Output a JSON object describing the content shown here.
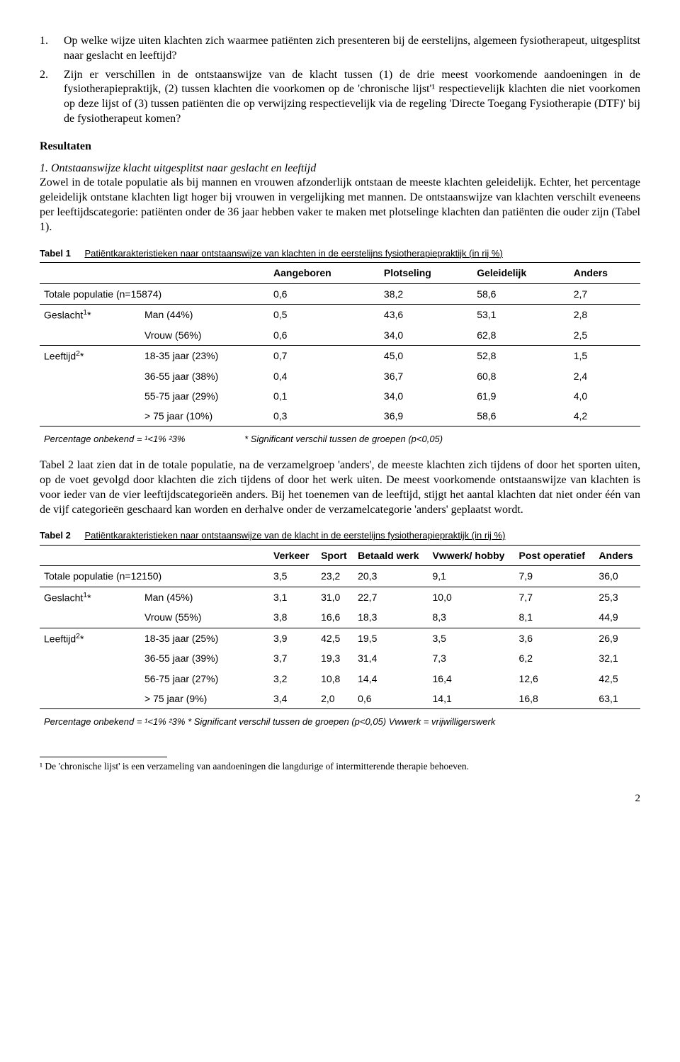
{
  "q1": {
    "num": "1.",
    "text": "Op welke wijze uiten klachten zich waarmee patiënten zich presenteren bij de eerstelijns, algemeen fysiotherapeut, uitgesplitst naar geslacht en leeftijd?"
  },
  "q2": {
    "num": "2.",
    "text": "Zijn er verschillen in de ontstaanswijze van de klacht tussen (1) de drie meest voorkomende aandoeningen in de fysiotherapiepraktijk, (2) tussen klachten die voorkomen op de 'chronische lijst'¹ respectievelijk klachten die niet voorkomen op deze lijst of (3) tussen patiënten die op verwijzing respectievelijk via de regeling 'Directe Toegang Fysiotherapie (DTF)' bij de fysiotherapeut komen?"
  },
  "results_heading": "Resultaten",
  "sec1_head": "1. Ontstaanswijze klacht uitgesplitst naar geslacht en leeftijd",
  "sec1_body": "Zowel in de totale populatie als bij mannen en vrouwen afzonderlijk ontstaan de meeste klachten geleidelijk. Echter, het percentage geleidelijk ontstane klachten ligt hoger bij vrouwen in vergelijking met mannen. De ontstaanswijze van klachten verschilt eveneens per leeftijdscategorie: patiënten onder de 36 jaar hebben vaker te maken met plotselinge klachten dan patiënten die ouder zijn (Tabel 1).",
  "table1": {
    "caption_label": "Tabel 1",
    "caption_text": "Patiëntkarakteristieken naar ontstaanswijze van klachten in de eerstelijns fysiotherapiepraktijk (in rij %)",
    "headers": [
      "",
      "",
      "Aangeboren",
      "Plotseling",
      "Geleidelijk",
      "Anders"
    ],
    "rows": [
      {
        "label": "Totale populatie (n=15874)",
        "sub": "",
        "v": [
          "0,6",
          "38,2",
          "58,6",
          "2,7"
        ],
        "section_end": true
      },
      {
        "label": "Geslacht¹*",
        "sub": "Man (44%)",
        "v": [
          "0,5",
          "43,6",
          "53,1",
          "2,8"
        ],
        "section_end": false
      },
      {
        "label": "",
        "sub": "Vrouw (56%)",
        "v": [
          "0,6",
          "34,0",
          "62,8",
          "2,5"
        ],
        "section_end": true
      },
      {
        "label": "Leeftijd²*",
        "sub": "18-35 jaar (23%)",
        "v": [
          "0,7",
          "45,0",
          "52,8",
          "1,5"
        ],
        "section_end": false
      },
      {
        "label": "",
        "sub": "36-55 jaar (38%)",
        "v": [
          "0,4",
          "36,7",
          "60,8",
          "2,4"
        ],
        "section_end": false
      },
      {
        "label": "",
        "sub": "55-75 jaar (29%)",
        "v": [
          "0,1",
          "34,0",
          "61,9",
          "4,0"
        ],
        "section_end": false
      },
      {
        "label": "",
        "sub": "> 75 jaar (10%)",
        "v": [
          "0,3",
          "36,9",
          "58,6",
          "4,2"
        ],
        "section_end": true
      }
    ],
    "footnote_left": "Percentage onbekend = ¹<1% ²3%",
    "footnote_right": "* Significant verschil tussen de groepen (p<0,05)"
  },
  "mid_body": "Tabel 2 laat zien dat in de totale populatie, na de verzamelgroep 'anders', de meeste klachten zich tijdens of door het sporten uiten, op de voet gevolgd door klachten die zich tijdens of door het werk uiten. De meest voorkomende ontstaanswijze van klachten is voor ieder van de vier leeftijdscategorieën anders. Bij het toenemen van de leeftijd, stijgt het aantal klachten dat niet onder één van de vijf categorieën geschaard kan worden en derhalve onder de verzamelcategorie 'anders' geplaatst wordt.",
  "table2": {
    "caption_label": "Tabel 2",
    "caption_text": "Patiëntkarakteristieken naar ontstaanswijze van de klacht in de eerstelijns fysiotherapiepraktijk (in rij %)",
    "headers": [
      "",
      "",
      "Verkeer",
      "Sport",
      "Betaald werk",
      "Vwwerk/ hobby",
      "Post operatief",
      "Anders"
    ],
    "rows": [
      {
        "label": "Totale populatie (n=12150)",
        "sub": "",
        "v": [
          "3,5",
          "23,2",
          "20,3",
          "9,1",
          "7,9",
          "36,0"
        ],
        "section_end": true
      },
      {
        "label": "Geslacht¹*",
        "sub": "Man (45%)",
        "v": [
          "3,1",
          "31,0",
          "22,7",
          "10,0",
          "7,7",
          "25,3"
        ],
        "section_end": false
      },
      {
        "label": "",
        "sub": "Vrouw (55%)",
        "v": [
          "3,8",
          "16,6",
          "18,3",
          "8,3",
          "8,1",
          "44,9"
        ],
        "section_end": true
      },
      {
        "label": "Leeftijd²*",
        "sub": "18-35 jaar (25%)",
        "v": [
          "3,9",
          "42,5",
          "19,5",
          "3,5",
          "3,6",
          "26,9"
        ],
        "section_end": false
      },
      {
        "label": "",
        "sub": "36-55 jaar (39%)",
        "v": [
          "3,7",
          "19,3",
          "31,4",
          "7,3",
          "6,2",
          "32,1"
        ],
        "section_end": false
      },
      {
        "label": "",
        "sub": "56-75 jaar (27%)",
        "v": [
          "3,2",
          "10,8",
          "14,4",
          "16,4",
          "12,6",
          "42,5"
        ],
        "section_end": false
      },
      {
        "label": "",
        "sub": "> 75 jaar (9%)",
        "v": [
          "3,4",
          "2,0",
          "0,6",
          "14,1",
          "16,8",
          "63,1"
        ],
        "section_end": true
      }
    ],
    "footnote": "Percentage onbekend = ¹<1% ²3%    * Significant verschil tussen de groepen (p<0,05)   Vwwerk = vrijwilligerswerk"
  },
  "page_footnote": "¹ De 'chronische lijst' is een verzameling van aandoeningen die langdurige of intermitterende therapie behoeven.",
  "page_num": "2"
}
